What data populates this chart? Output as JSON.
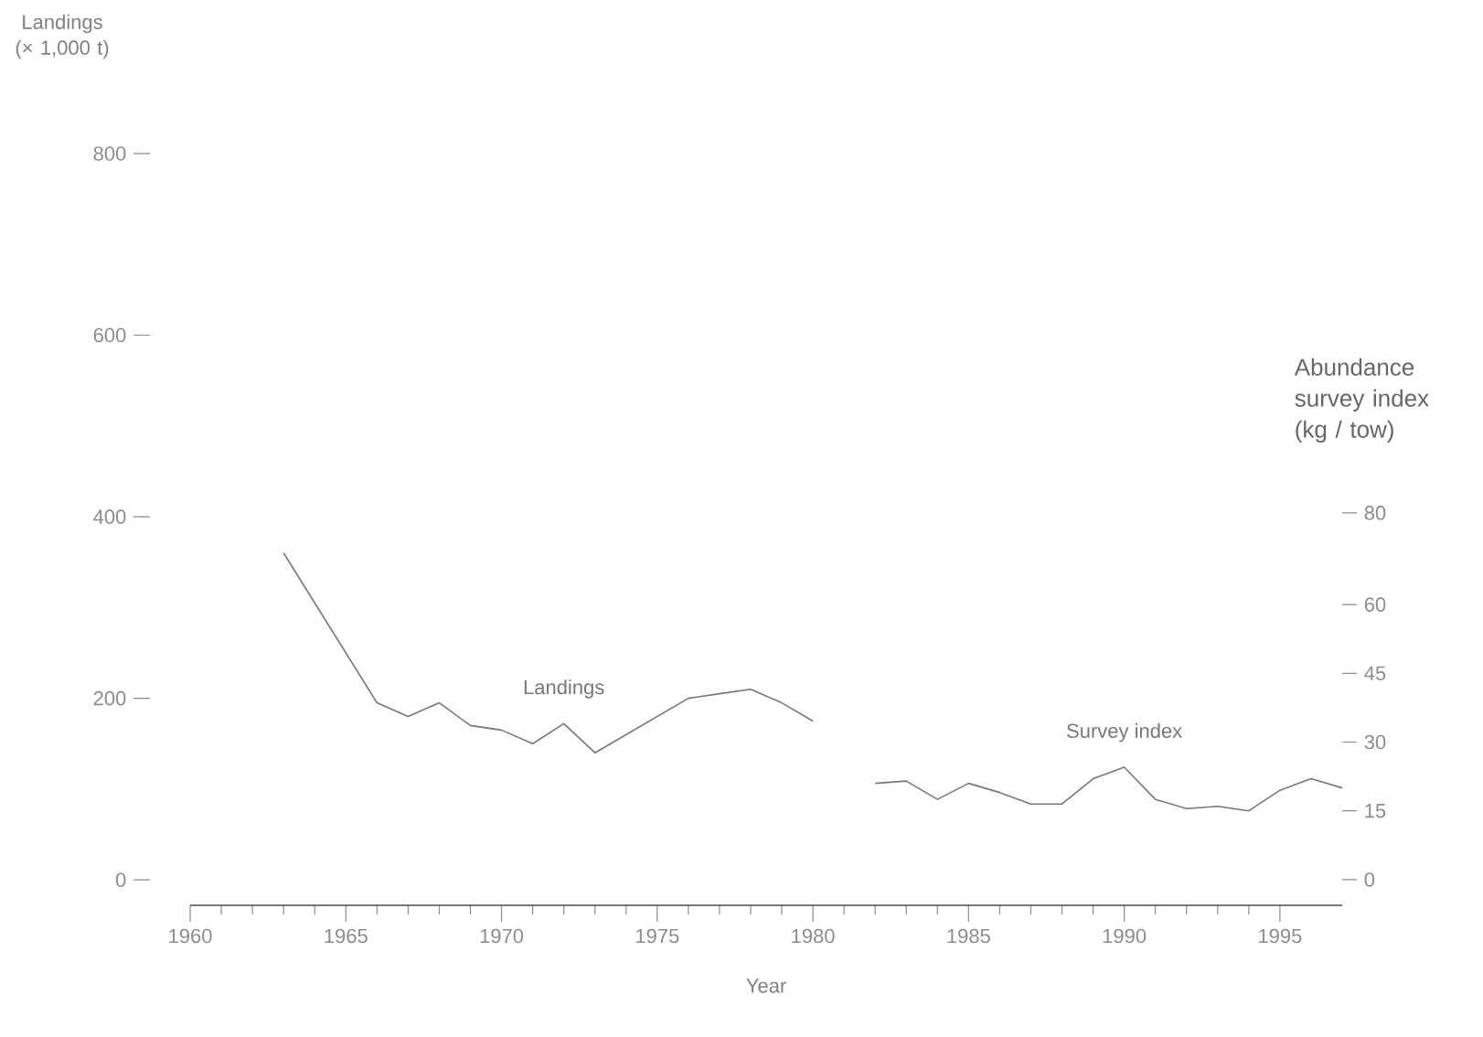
{
  "chart_data": {
    "type": "line",
    "xlabel": "Year",
    "ylabel": "Landings\n(× 1,000 t)",
    "y2label": "Abundance\nsurvey index\n(kg / tow)",
    "xlim": [
      1960,
      1997
    ],
    "xticks": [
      1960,
      1965,
      1970,
      1975,
      1980,
      1985,
      1990,
      1995
    ],
    "ylim": [
      -28,
      800
    ],
    "yticks": [
      0,
      200,
      400,
      600,
      800
    ],
    "y2lim": [
      -5.6,
      80
    ],
    "y2ticks": [
      0,
      15,
      30,
      45,
      60,
      80
    ],
    "marker": "none",
    "line_style": "solid",
    "series": [
      {
        "name": "Landings",
        "color": "#777777",
        "x": [
          1963,
          1966,
          1967,
          1968,
          1969,
          1970,
          1971,
          1972,
          1973,
          1976,
          1977,
          1978,
          1979,
          1980
        ],
        "values": [
          360,
          195,
          180,
          195,
          170,
          165,
          150,
          172,
          140,
          200,
          205,
          210,
          195,
          175
        ]
      },
      {
        "name": "Survey index",
        "color": "#777777",
        "axis": "y2",
        "x": [
          1982,
          1983,
          1984,
          1985,
          1986,
          1987,
          1988,
          1989,
          1990,
          1991,
          1992,
          1993,
          1994,
          1995,
          1996,
          1997
        ],
        "values": [
          21,
          21.5,
          17.5,
          21,
          19,
          16.5,
          16.5,
          22,
          24.5,
          17.5,
          15.5,
          16,
          15,
          19.5,
          22,
          20
        ]
      }
    ]
  }
}
